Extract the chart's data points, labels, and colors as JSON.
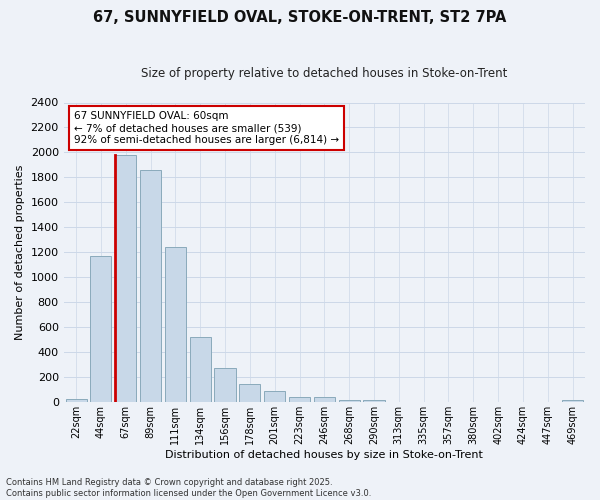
{
  "title_line1": "67, SUNNYFIELD OVAL, STOKE-ON-TRENT, ST2 7PA",
  "title_line2": "Size of property relative to detached houses in Stoke-on-Trent",
  "xlabel": "Distribution of detached houses by size in Stoke-on-Trent",
  "ylabel": "Number of detached properties",
  "categories": [
    "22sqm",
    "44sqm",
    "67sqm",
    "89sqm",
    "111sqm",
    "134sqm",
    "156sqm",
    "178sqm",
    "201sqm",
    "223sqm",
    "246sqm",
    "268sqm",
    "290sqm",
    "313sqm",
    "335sqm",
    "357sqm",
    "380sqm",
    "402sqm",
    "424sqm",
    "447sqm",
    "469sqm"
  ],
  "values": [
    25,
    1170,
    1980,
    1860,
    1245,
    520,
    275,
    150,
    90,
    40,
    40,
    15,
    15,
    5,
    2,
    2,
    2,
    2,
    2,
    2,
    15
  ],
  "bar_color": "#c8d8e8",
  "bar_edge_color": "#8aaabb",
  "highlight_bar_index": 2,
  "highlight_bar_edge_color": "#cc0000",
  "annotation_box_text": "67 SUNNYFIELD OVAL: 60sqm\n← 7% of detached houses are smaller (539)\n92% of semi-detached houses are larger (6,814) →",
  "ylim": [
    0,
    2400
  ],
  "yticks": [
    0,
    200,
    400,
    600,
    800,
    1000,
    1200,
    1400,
    1600,
    1800,
    2000,
    2200,
    2400
  ],
  "grid_color": "#ccd8e8",
  "background_color": "#eef2f8",
  "footer_line1": "Contains HM Land Registry data © Crown copyright and database right 2025.",
  "footer_line2": "Contains public sector information licensed under the Open Government Licence v3.0."
}
